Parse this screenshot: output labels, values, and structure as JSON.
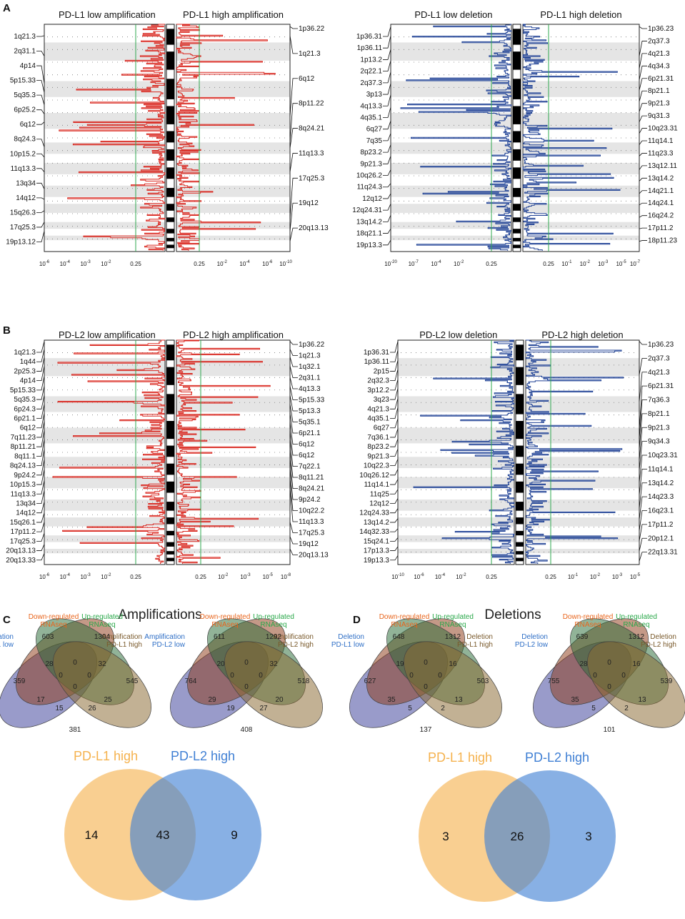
{
  "panels": {
    "A": {
      "label": "A"
    },
    "B": {
      "label": "B"
    },
    "C": {
      "label": "C",
      "title": "Amplifications"
    },
    "D": {
      "label": "D",
      "title": "Deletions"
    }
  },
  "colors": {
    "amp": "#d9241c",
    "del": "#1c3f94",
    "band": "#e5e5e5",
    "threshold": "#2fa84f",
    "v_blue": "#2f6fc6",
    "v_orange": "#e8651c",
    "v_green": "#2aa84a",
    "v_brown": "#7a5a2c",
    "e_blue": "#3b3f9a",
    "e_orange": "#8e3b18",
    "e_green": "#2c6e3a",
    "e_brown": "#8a6a32",
    "pd_l1": "#f5b24e",
    "pd_l2": "#3f7fd4"
  },
  "chart_data": [
    {
      "type": "area",
      "id": "A-amp",
      "title_left": "PD-L1 low amplification",
      "title_right": "PD-L1 high amplification",
      "left_ticks": [
        "10^-6",
        "10^-4",
        "10^-3",
        "10^-2",
        "0.25"
      ],
      "right_ticks": [
        "0.25",
        "10^-2",
        "10^-4",
        "10^-6",
        "10^-10"
      ],
      "threshold": "0.25",
      "left_labels": [
        "1q21.3",
        "2q31.1",
        "4p14",
        "5p15.33",
        "5q35.3",
        "6p25.2",
        "6q12",
        "8q24.3",
        "10p15.2",
        "11q13.3",
        "13q34",
        "14q12",
        "15q26.3",
        "17q25.3",
        "19p13.12"
      ],
      "left_at": [
        0.05,
        0.14,
        0.26,
        0.3,
        0.355,
        0.395,
        0.43,
        0.54,
        0.585,
        0.65,
        0.725,
        0.77,
        0.82,
        0.87,
        0.91
      ],
      "right_labels": [
        "1p36.22",
        "1q21.3",
        "6q12",
        "8p11.22",
        "8q24.21",
        "11q13.3",
        "17q25.3",
        "19q12",
        "20q13.13"
      ],
      "right_at": [
        0.01,
        0.05,
        0.405,
        0.515,
        0.545,
        0.65,
        0.855,
        0.91,
        0.955
      ]
    },
    {
      "type": "area",
      "id": "A-del",
      "title_left": "PD-L1 low deletion",
      "title_right": "PD-L1 high deletion",
      "left_ticks": [
        "10^-20",
        "10^-7",
        "10^-4",
        "10^-2",
        "0.25"
      ],
      "right_ticks": [
        "0.25",
        "10^-1",
        "10^-2",
        "10^-3",
        "10^-5",
        "10^-7"
      ],
      "threshold": "0.25",
      "left_labels": [
        "1p36.31",
        "1p36.11",
        "1p13.2",
        "2q22.1",
        "2q37.3",
        "3p13",
        "4q13.3",
        "4q35.1",
        "6q27",
        "7q35",
        "8p23.2",
        "9p21.3",
        "10q26.2",
        "11q24.3",
        "12q12",
        "12q24.31",
        "13q14.2",
        "18q21.1",
        "19p13.3"
      ],
      "left_at": [
        0.01,
        0.05,
        0.11,
        0.16,
        0.21,
        0.26,
        0.31,
        0.365,
        0.425,
        0.48,
        0.53,
        0.58,
        0.64,
        0.7,
        0.745,
        0.79,
        0.84,
        0.9,
        0.95
      ],
      "right_labels": [
        "1p36.23",
        "2q37.3",
        "4q21.3",
        "4q34.3",
        "6p21.31",
        "8p21.1",
        "9p21.3",
        "9q31.3",
        "10q23.31",
        "11q14.1",
        "11q23.3",
        "13q12.11",
        "13q14.2",
        "14q21.1",
        "14q24.1",
        "16q24.2",
        "17p11.2",
        "18p11.23"
      ],
      "right_at": [
        0.01,
        0.14,
        0.195,
        0.245,
        0.29,
        0.34,
        0.385,
        0.43,
        0.48,
        0.53,
        0.58,
        0.64,
        0.69,
        0.745,
        0.795,
        0.85,
        0.9,
        0.955
      ]
    },
    {
      "type": "area",
      "id": "B-amp",
      "title_left": "PD-L2 low amplification",
      "title_right": "PD-L2 high amplification",
      "left_ticks": [
        "10^-6",
        "10^-4",
        "10^-3",
        "10^-2",
        "0.25"
      ],
      "right_ticks": [
        "0.25",
        "10^-2",
        "10^-3",
        "10^-5",
        "10^-8"
      ],
      "threshold": "0.25",
      "left_labels": [
        "1q21.3",
        "1q44",
        "2p25.3",
        "4p14",
        "5p15.33",
        "5q35.3",
        "6p24.3",
        "6p21.1",
        "6q12",
        "7q11.23",
        "8p11.21",
        "8q11.1",
        "8q24.13",
        "9p24.2",
        "10p15.3",
        "11q13.3",
        "13q34",
        "14q12",
        "15q26.1",
        "17p11.2",
        "17q25.3",
        "20q13.13",
        "20q13.33"
      ],
      "left_at": [
        0.005,
        0.04,
        0.075,
        0.115,
        0.16,
        0.205,
        0.245,
        0.285,
        0.325,
        0.36,
        0.4,
        0.44,
        0.485,
        0.53,
        0.575,
        0.625,
        0.67,
        0.72,
        0.77,
        0.81,
        0.86,
        0.91,
        0.95
      ],
      "right_labels": [
        "1p36.22",
        "1q21.3",
        "1q32.1",
        "2q31.1",
        "4q13.3",
        "5p15.33",
        "5p13.3",
        "5q35.1",
        "6p21.1",
        "6q12",
        "6q12",
        "7q22.1",
        "8q11.21",
        "8q24.21",
        "9p24.2",
        "10q22.2",
        "11q13.3",
        "17q25.3",
        "19q12",
        "20q13.13"
      ],
      "right_at": [
        0.005,
        0.04,
        0.075,
        0.115,
        0.165,
        0.205,
        0.245,
        0.285,
        0.325,
        0.365,
        0.405,
        0.445,
        0.49,
        0.53,
        0.575,
        0.62,
        0.665,
        0.81,
        0.875,
        0.93
      ]
    },
    {
      "type": "area",
      "id": "B-del",
      "title_left": "PD-L2 low deletion",
      "title_right": "PD-L2 high deletion",
      "left_ticks": [
        "10^-10",
        "10^-6",
        "10^-4",
        "10^-2",
        "0.25"
      ],
      "right_ticks": [
        "0.25",
        "10^-1",
        "10^-2",
        "10^-3",
        "10^-5"
      ],
      "threshold": "0.25",
      "left_labels": [
        "1p36.31",
        "1p36.11",
        "2p15",
        "2q32.3",
        "3p12.2",
        "3q23",
        "4q21.3",
        "4q35.1",
        "6q27",
        "7q36.1",
        "8p23.2",
        "9p21.3",
        "10q22.3",
        "10q26.12",
        "11q14.1",
        "11q25",
        "12q12",
        "12q24.33",
        "13q14.2",
        "14q32.33",
        "15q24.1",
        "17p13.3",
        "19p13.3"
      ],
      "left_at": [
        0.005,
        0.045,
        0.09,
        0.13,
        0.175,
        0.215,
        0.26,
        0.3,
        0.35,
        0.395,
        0.44,
        0.485,
        0.53,
        0.575,
        0.62,
        0.665,
        0.705,
        0.75,
        0.795,
        0.84,
        0.88,
        0.92,
        0.96
      ],
      "right_labels": [
        "1p36.23",
        "2q37.3",
        "4q21.3",
        "6p21.31",
        "7q36.3",
        "8p21.1",
        "9p21.3",
        "9q34.3",
        "10q23.31",
        "11q14.1",
        "13q14.2",
        "14q23.3",
        "16q23.1",
        "17p11.2",
        "20p12.1",
        "22q13.31"
      ],
      "right_at": [
        0.005,
        0.155,
        0.275,
        0.4,
        0.44,
        0.485,
        0.535,
        0.58,
        0.635,
        0.69,
        0.75,
        0.8,
        0.85,
        0.895,
        0.94,
        0.985
      ]
    },
    {
      "type": "venn4",
      "id": "C-venn1",
      "set_labels": [
        "Amplification\nPD-L1 low",
        "Down-regulated\nRNAseq",
        "Up-regulated\nRNAseq",
        "Amplification\nPD-L1 high"
      ],
      "counts": [
        359,
        603,
        1304,
        545,
        28,
        0,
        32,
        0,
        0,
        0,
        17,
        25,
        15,
        26,
        381
      ]
    },
    {
      "type": "venn4",
      "id": "C-venn2",
      "set_labels": [
        "Amplification\nPD-L2 low",
        "Down-regulated\nRNAseq",
        "Up-regulated\nRNAseq",
        "Amplification\nPD-L2 high"
      ],
      "counts": [
        764,
        611,
        1292,
        518,
        20,
        0,
        32,
        0,
        0,
        0,
        29,
        20,
        19,
        27,
        408
      ]
    },
    {
      "type": "venn4",
      "id": "D-venn1",
      "set_labels": [
        "Deletion\nPD-L1 low",
        "Down-regulated\nRNAseq",
        "Up-regulated\nRNAseq",
        "Deletion\nPD-L1 high"
      ],
      "counts": [
        627,
        648,
        1312,
        503,
        19,
        0,
        16,
        0,
        0,
        0,
        35,
        13,
        5,
        2,
        137
      ]
    },
    {
      "type": "venn4",
      "id": "D-venn2",
      "set_labels": [
        "Deletion\nPD-L2 low",
        "Down-regulated\nRNAseq",
        "Up-regulated\nRNAseq",
        "Deletion\nPD-L2 high"
      ],
      "counts": [
        755,
        639,
        1312,
        539,
        28,
        0,
        16,
        0,
        0,
        0,
        35,
        13,
        5,
        2,
        101
      ]
    },
    {
      "type": "venn2",
      "id": "C-venn3",
      "set_labels": [
        "PD-L1 high",
        "PD-L2 high"
      ],
      "counts": [
        14,
        43,
        9
      ]
    },
    {
      "type": "venn2",
      "id": "D-venn3",
      "set_labels": [
        "PD-L1 high",
        "PD-L2 high"
      ],
      "counts": [
        3,
        26,
        3
      ]
    }
  ]
}
